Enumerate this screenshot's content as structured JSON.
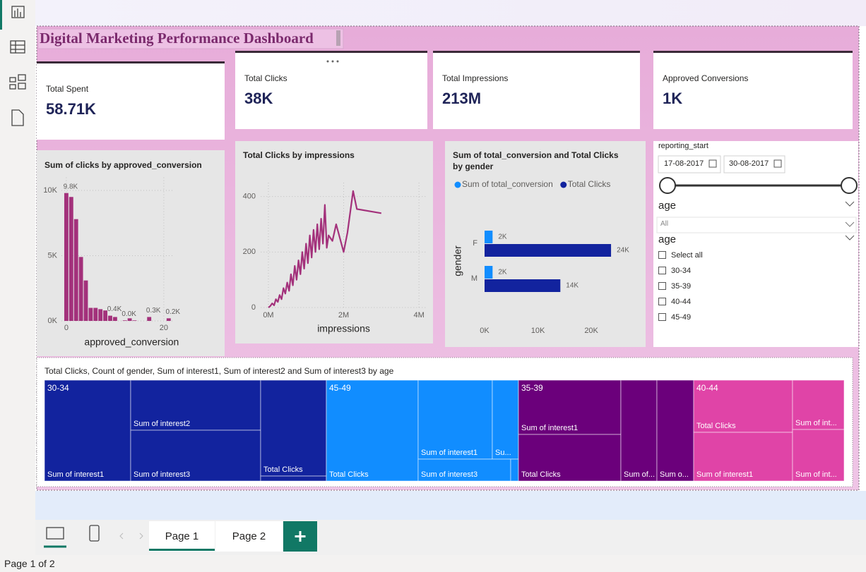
{
  "app": {
    "page_status": "Page 1 of 2",
    "tabs": [
      "Page 1",
      "Page 2"
    ]
  },
  "dashboard": {
    "title": "Digital Marketing Performance Dashboard"
  },
  "cards": [
    {
      "label": "Total Spent",
      "value": "58.71K"
    },
    {
      "label": "Total Clicks",
      "value": "38K"
    },
    {
      "label": "Total Impressions",
      "value": "213M"
    },
    {
      "label": "Approved Conversions",
      "value": "1K"
    }
  ],
  "chart_data": [
    {
      "type": "bar",
      "title": "Sum of clicks by approved_conversion",
      "xlabel": "approved_conversion",
      "color": "#a3317b",
      "grid": true,
      "x": [
        0,
        1,
        2,
        3,
        4,
        5,
        6,
        7,
        8,
        9,
        10,
        12,
        13,
        14,
        17,
        21
      ],
      "values": [
        9800,
        9500,
        7800,
        4900,
        3100,
        1000,
        1000,
        900,
        800,
        400,
        300,
        40,
        200,
        40,
        300,
        200
      ],
      "value_labels": [
        "9.8K",
        null,
        null,
        null,
        null,
        null,
        null,
        null,
        null,
        "0.4K",
        null,
        "0.0K",
        null,
        null,
        "0.3K",
        "0.2K"
      ],
      "xlim": [
        -1,
        22
      ],
      "xticks": [
        0,
        20
      ],
      "ylim": [
        0,
        11000
      ],
      "yticks": [
        {
          "value": 0,
          "label": "0K"
        },
        {
          "value": 5000,
          "label": "5K"
        },
        {
          "value": 10000,
          "label": "10K"
        }
      ]
    },
    {
      "type": "line",
      "title": "Total Clicks by impressions",
      "xlabel": "impressions",
      "color": "#a3317b",
      "grid": true,
      "x": [
        0,
        50000,
        100000,
        150000,
        200000,
        250000,
        300000,
        350000,
        400000,
        450000,
        500000,
        550000,
        600000,
        650000,
        700000,
        750000,
        800000,
        850000,
        900000,
        950000,
        1000000,
        1050000,
        1100000,
        1150000,
        1200000,
        1250000,
        1300000,
        1350000,
        1400000,
        1450000,
        1500000,
        1550000,
        1600000,
        1700000,
        1800000,
        2000000,
        2100000,
        2250000,
        2350000,
        3000000
      ],
      "values": [
        0,
        5,
        15,
        8,
        30,
        20,
        45,
        30,
        70,
        50,
        90,
        60,
        120,
        80,
        150,
        100,
        170,
        120,
        200,
        140,
        230,
        160,
        260,
        180,
        280,
        200,
        300,
        210,
        320,
        230,
        370,
        215,
        260,
        240,
        300,
        200,
        270,
        420,
        355,
        340
      ],
      "xlim": [
        -200000,
        4200000
      ],
      "xticks": [
        {
          "value": 0,
          "label": "0M"
        },
        {
          "value": 2000000,
          "label": "2M"
        },
        {
          "value": 4000000,
          "label": "4M"
        }
      ],
      "ylim": [
        0,
        450
      ],
      "yticks": [
        0,
        200,
        400
      ]
    },
    {
      "type": "bar",
      "orientation": "horizontal",
      "title": "Sum of total_conversion and Total Clicks by gender",
      "ylabel": "gender",
      "legend": "top-left",
      "grid": false,
      "categories": [
        "F",
        "M"
      ],
      "series": [
        {
          "name": "Sum of total_conversion",
          "color": "#118dff",
          "values": [
            1500,
            1500
          ],
          "value_labels": [
            "2K",
            "2K"
          ]
        },
        {
          "name": "Total Clicks",
          "color": "#12239e",
          "values": [
            23700,
            14200
          ],
          "value_labels": [
            "24K",
            "14K"
          ]
        }
      ],
      "xlim": [
        0,
        27000
      ],
      "xticks": [
        {
          "value": 0,
          "label": "0K"
        },
        {
          "value": 10000,
          "label": "10K"
        },
        {
          "value": 20000,
          "label": "20K"
        }
      ]
    }
  ],
  "slicer": {
    "date_field": "reporting_start",
    "start": "17-08-2017",
    "end": "30-08-2017",
    "dropdown": {
      "title": "age",
      "value": "All"
    },
    "list": {
      "title": "age",
      "items": [
        "Select all",
        "30-34",
        "35-39",
        "40-44",
        "45-49"
      ]
    }
  },
  "treemap": {
    "title": "Total Clicks, Count of gender, Sum of interest1, Sum of interest2 and Sum of interest3 by age",
    "groups": [
      {
        "label": "30-34",
        "color": "#12239e",
        "tiles": [
          "Sum of interest1",
          "Sum of interest2",
          "Sum of interest3",
          "Total Clicks",
          null
        ]
      },
      {
        "label": "45-49",
        "color": "#118dff",
        "tiles": [
          "Total Clicks",
          "Sum of interest1",
          "Su...",
          "Sum of interest3",
          null
        ]
      },
      {
        "label": "35-39",
        "color": "#6b007b",
        "tiles": [
          "Sum of interest1",
          "Total Clicks",
          "Sum of...",
          "Sum o..."
        ]
      },
      {
        "label": "40-44",
        "color": "#e044a7",
        "tiles": [
          "Total Clicks",
          "Sum of interest1",
          "Sum of int...",
          "Sum of int..."
        ]
      }
    ]
  }
}
